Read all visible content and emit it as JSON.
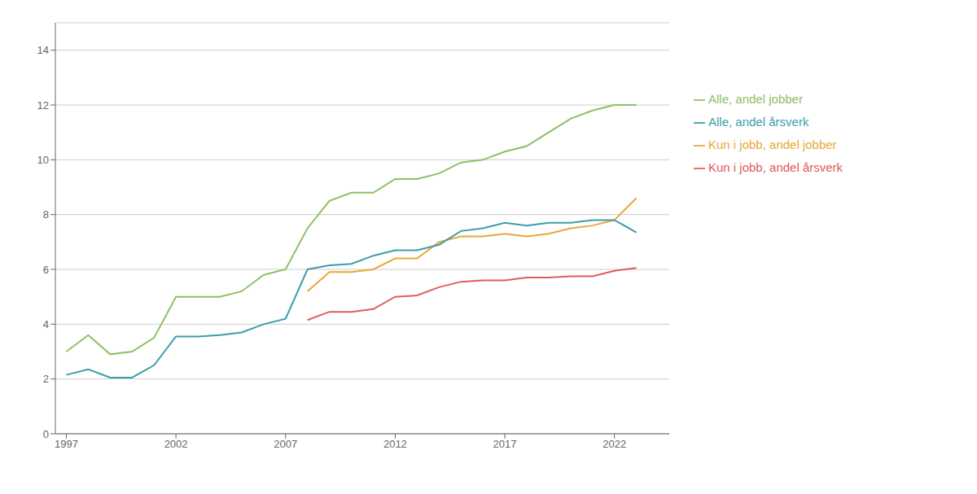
{
  "chart_data": {
    "type": "line",
    "x": [
      1997,
      1998,
      1999,
      2000,
      2001,
      2002,
      2003,
      2004,
      2005,
      2006,
      2007,
      2008,
      2009,
      2010,
      2011,
      2012,
      2013,
      2014,
      2015,
      2016,
      2017,
      2018,
      2019,
      2020,
      2021,
      2022,
      2023
    ],
    "series": [
      {
        "name": "Alle, andel jobber",
        "color": "#8dc063",
        "values": [
          3.0,
          3.6,
          2.9,
          3.0,
          3.5,
          5.0,
          5.0,
          5.0,
          5.2,
          5.8,
          6.0,
          7.5,
          8.5,
          8.8,
          8.8,
          9.3,
          9.3,
          9.5,
          9.9,
          10.0,
          10.3,
          10.5,
          11.0,
          11.5,
          11.8,
          12.0,
          12.0
        ]
      },
      {
        "name": "Kun i jobb, andel jobber",
        "color": "#e8a838",
        "values": [
          null,
          null,
          null,
          null,
          null,
          null,
          null,
          null,
          null,
          null,
          null,
          5.2,
          5.9,
          5.9,
          6.0,
          6.4,
          6.4,
          7.0,
          7.2,
          7.2,
          7.3,
          7.2,
          7.3,
          7.5,
          7.6,
          7.8,
          8.6
        ]
      },
      {
        "name": "Alle, andel årsverk",
        "color": "#3c9dab",
        "values": [
          2.15,
          2.35,
          2.05,
          2.05,
          2.5,
          3.55,
          3.55,
          3.6,
          3.7,
          4.0,
          4.2,
          6.0,
          6.15,
          6.2,
          6.5,
          6.7,
          6.7,
          6.9,
          7.4,
          7.5,
          7.7,
          7.6,
          7.7,
          7.7,
          7.8,
          7.8,
          7.35
        ]
      },
      {
        "name": "Kun i jobb, andel årsverk",
        "color": "#e05c5c",
        "values": [
          null,
          null,
          null,
          null,
          null,
          null,
          null,
          null,
          null,
          null,
          null,
          4.15,
          4.45,
          4.45,
          4.55,
          5.0,
          5.05,
          5.35,
          5.55,
          5.6,
          5.6,
          5.7,
          5.7,
          5.75,
          5.75,
          5.95,
          6.05
        ]
      }
    ],
    "xlim": [
      1996.5,
      2024.5
    ],
    "xticks": [
      1997,
      2002,
      2007,
      2012,
      2017,
      2022
    ],
    "ylim": [
      0,
      15.0
    ],
    "yticks": [
      0,
      2,
      4,
      6,
      8,
      10,
      12,
      14
    ],
    "grid": true,
    "legend": "right"
  }
}
